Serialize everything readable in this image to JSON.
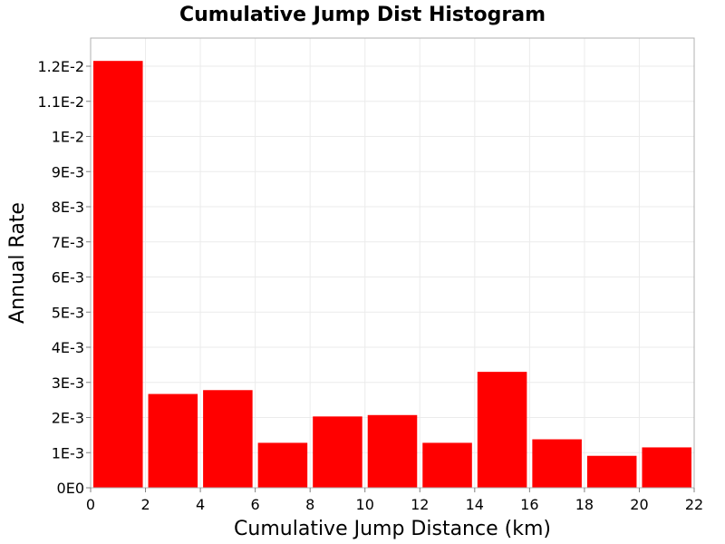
{
  "chart_data": {
    "type": "bar",
    "title": "Cumulative Jump Dist Histogram",
    "xlabel": "Cumulative Jump Distance (km)",
    "ylabel": "Annual Rate",
    "xlim": [
      0,
      22
    ],
    "ylim": [
      0,
      0.0128
    ],
    "bar_color": "#ff0000",
    "grid": true,
    "x_ticks": [
      0,
      2,
      4,
      6,
      8,
      10,
      12,
      14,
      16,
      18,
      20,
      22
    ],
    "x_tick_labels": [
      "0",
      "2",
      "4",
      "6",
      "8",
      "10",
      "12",
      "14",
      "16",
      "18",
      "20",
      "22"
    ],
    "y_ticks": [
      0,
      0.001,
      0.002,
      0.003,
      0.004,
      0.005,
      0.006,
      0.007,
      0.008,
      0.009,
      0.01,
      0.011,
      0.012
    ],
    "y_tick_labels": [
      "0E0",
      "1E-3",
      "2E-3",
      "3E-3",
      "4E-3",
      "5E-3",
      "6E-3",
      "7E-3",
      "8E-3",
      "9E-3",
      "1E-2",
      "1.1E-2",
      "1.2E-2"
    ],
    "bin_edges": [
      [
        0,
        2
      ],
      [
        2,
        4
      ],
      [
        4,
        6
      ],
      [
        6,
        8
      ],
      [
        8,
        10
      ],
      [
        10,
        12
      ],
      [
        12,
        14
      ],
      [
        14,
        16
      ],
      [
        16,
        18
      ],
      [
        18,
        20
      ],
      [
        20,
        22
      ]
    ],
    "values": [
      0.01215,
      0.00267,
      0.00278,
      0.00128,
      0.00203,
      0.00207,
      0.00128,
      0.0033,
      0.00138,
      0.00091,
      0.00115
    ]
  }
}
